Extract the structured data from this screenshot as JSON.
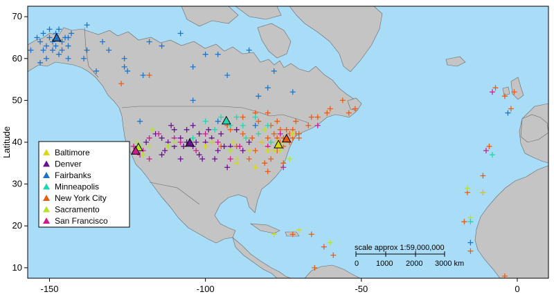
{
  "map": {
    "ylabel": "Latitude",
    "x_ticks": [
      -150,
      -100,
      -50,
      0
    ],
    "y_ticks": [
      10,
      20,
      30,
      40,
      50,
      60,
      70
    ],
    "xlim": [
      -157,
      10
    ],
    "ylim": [
      7.5,
      72.5
    ],
    "colors": {
      "ocean": "#a9dcf7",
      "land": "#c4c4c4",
      "border": "#666666",
      "frame": "#000000"
    },
    "scale_bar": {
      "title": "scale approx 1:59,000,000",
      "labels": [
        "0",
        "1000",
        "2000",
        "3000 km"
      ]
    }
  },
  "legend": [
    {
      "name": "Baltimore",
      "color": "#d9d90a"
    },
    {
      "name": "Denver",
      "color": "#6a0d8f"
    },
    {
      "name": "Fairbanks",
      "color": "#1e73c8"
    },
    {
      "name": "Minneapolis",
      "color": "#1fd6b0"
    },
    {
      "name": "New York City",
      "color": "#ec5a0f"
    },
    {
      "name": "Sacramento",
      "color": "#b6e22a"
    },
    {
      "name": "San Francisco",
      "color": "#d0188f"
    }
  ],
  "chart_data": {
    "type": "scatter",
    "xlabel": "",
    "ylabel": "Latitude",
    "xlim": [
      -157,
      10
    ],
    "ylim": [
      7.5,
      72.5
    ],
    "cities": [
      {
        "name": "Baltimore",
        "lon": -76.6,
        "lat": 39.3
      },
      {
        "name": "Denver",
        "lon": -105.0,
        "lat": 39.7
      },
      {
        "name": "Fairbanks",
        "lon": -147.7,
        "lat": 64.8
      },
      {
        "name": "Minneapolis",
        "lon": -93.3,
        "lat": 45.0
      },
      {
        "name": "New York City",
        "lon": -74.0,
        "lat": 40.7
      },
      {
        "name": "Sacramento",
        "lon": -121.5,
        "lat": 38.6
      },
      {
        "name": "San Francisco",
        "lon": -122.4,
        "lat": 37.8
      }
    ],
    "series": [
      {
        "name": "Fairbanks",
        "points": [
          [
            -152,
            66
          ],
          [
            -150,
            65
          ],
          [
            -149,
            64
          ],
          [
            -148,
            66
          ],
          [
            -146,
            64
          ],
          [
            -145,
            65
          ],
          [
            -147,
            67
          ],
          [
            -151,
            63
          ],
          [
            -144,
            63
          ],
          [
            -153,
            64
          ],
          [
            -149,
            62
          ],
          [
            -146,
            62
          ],
          [
            -143,
            66
          ],
          [
            -150,
            67
          ],
          [
            -144,
            65
          ],
          [
            -148,
            63
          ],
          [
            -154,
            65
          ],
          [
            -152,
            62
          ],
          [
            -147,
            61
          ],
          [
            -151,
            60
          ],
          [
            -156,
            62
          ],
          [
            -153,
            59
          ],
          [
            -138,
            68
          ],
          [
            -138,
            62
          ],
          [
            -131,
            62
          ],
          [
            -126,
            60
          ],
          [
            -133,
            64
          ],
          [
            -118,
            64
          ],
          [
            -114,
            63
          ],
          [
            -120,
            56
          ],
          [
            -125,
            57
          ],
          [
            -108,
            66
          ],
          [
            -104,
            58
          ],
          [
            -100,
            61
          ],
          [
            -96,
            61
          ],
          [
            -86,
            62
          ],
          [
            -78,
            57
          ],
          [
            -93,
            56
          ],
          [
            -83,
            51
          ],
          [
            -104,
            50
          ],
          [
            -80,
            53
          ],
          [
            -139,
            60
          ],
          [
            -135,
            57
          ],
          [
            -126,
            58
          ],
          [
            -144,
            60
          ],
          [
            -121,
            45
          ],
          [
            -84,
            44
          ],
          [
            -96,
            45
          ],
          [
            -72,
            52
          ],
          [
            -15,
            16
          ],
          [
            -3,
            47
          ]
        ]
      },
      {
        "name": "New York City",
        "points": [
          [
            -74,
            41
          ],
          [
            -73,
            42
          ],
          [
            -72,
            41
          ],
          [
            -75,
            41
          ],
          [
            -76,
            40
          ],
          [
            -71,
            42
          ],
          [
            -70,
            42
          ],
          [
            -73,
            40
          ],
          [
            -77,
            41
          ],
          [
            -74,
            43
          ],
          [
            -75,
            39
          ],
          [
            -72,
            43
          ],
          [
            -70,
            41
          ],
          [
            -78,
            42
          ],
          [
            -76,
            43
          ],
          [
            -80,
            41
          ],
          [
            -82,
            40
          ],
          [
            -85,
            41
          ],
          [
            -88,
            42
          ],
          [
            -90,
            39
          ],
          [
            -95,
            39
          ],
          [
            -98,
            40
          ],
          [
            -84,
            38
          ],
          [
            -86,
            36
          ],
          [
            -81,
            35
          ],
          [
            -77,
            38
          ],
          [
            -79,
            36
          ],
          [
            -83,
            45
          ],
          [
            -79,
            44
          ],
          [
            -71,
            45
          ],
          [
            -66,
            46
          ],
          [
            -64,
            46
          ],
          [
            -61,
            47
          ],
          [
            -54,
            47
          ],
          [
            -52,
            48
          ],
          [
            -56,
            50
          ],
          [
            -60,
            48
          ],
          [
            -67,
            44
          ],
          [
            -88,
            46
          ],
          [
            -93,
            44
          ],
          [
            -77,
            45
          ],
          [
            -75,
            35
          ],
          [
            -80,
            33
          ],
          [
            -72,
            18
          ],
          [
            -66,
            18
          ],
          [
            -62,
            15
          ],
          [
            -59,
            13
          ],
          [
            -65,
            10
          ],
          [
            -80,
            47
          ],
          [
            -84,
            47
          ],
          [
            -92,
            43
          ],
          [
            -118,
            56
          ],
          [
            -127,
            54
          ],
          [
            -4,
            51
          ],
          [
            -9,
            39
          ],
          [
            -2,
            48
          ],
          [
            -1,
            52
          ],
          [
            -7,
            53
          ],
          [
            -11,
            32
          ],
          [
            -16,
            28
          ],
          [
            -17,
            21
          ],
          [
            -15,
            14
          ],
          [
            -4,
            8
          ]
        ]
      },
      {
        "name": "Denver",
        "points": [
          [
            -105,
            40
          ],
          [
            -104,
            39
          ],
          [
            -106,
            40
          ],
          [
            -107,
            39
          ],
          [
            -103,
            40
          ],
          [
            -108,
            41
          ],
          [
            -110,
            39
          ],
          [
            -102,
            42
          ],
          [
            -100,
            40
          ],
          [
            -98,
            41
          ],
          [
            -96,
            38
          ],
          [
            -94,
            39
          ],
          [
            -112,
            40
          ],
          [
            -114,
            41
          ],
          [
            -116,
            42
          ],
          [
            -119,
            40
          ],
          [
            -111,
            44
          ],
          [
            -106,
            43
          ],
          [
            -99,
            43
          ],
          [
            -92,
            39
          ],
          [
            -88,
            38
          ],
          [
            -93,
            34
          ],
          [
            -97,
            36
          ],
          [
            -101,
            36
          ],
          [
            -108,
            36
          ],
          [
            -113,
            38
          ],
          [
            -104,
            44
          ],
          [
            -114,
            37
          ],
          [
            -90,
            43
          ],
          [
            -86,
            40
          ],
          [
            -95,
            42
          ],
          [
            -110,
            43
          ],
          [
            -102,
            37
          ]
        ]
      },
      {
        "name": "San Francisco",
        "points": [
          [
            -122,
            38
          ],
          [
            -121,
            37
          ],
          [
            -123,
            39
          ],
          [
            -120,
            38
          ],
          [
            -118,
            41
          ],
          [
            -115,
            42
          ],
          [
            -108,
            40
          ],
          [
            -100,
            42
          ],
          [
            -96,
            40
          ],
          [
            -92,
            36
          ],
          [
            -80,
            39
          ],
          [
            -76,
            42
          ],
          [
            -75,
            34
          ],
          [
            -118,
            36
          ],
          [
            -110,
            41
          ],
          [
            -103,
            38
          ],
          [
            -89,
            39
          ],
          [
            -64,
            44
          ],
          [
            -8,
            52
          ],
          [
            -10,
            38
          ],
          [
            -11,
            28
          ]
        ]
      },
      {
        "name": "Sacramento",
        "points": [
          [
            -121,
            39
          ],
          [
            -122,
            40
          ],
          [
            -120,
            37
          ],
          [
            -118,
            39
          ],
          [
            -117,
            43
          ],
          [
            -112,
            39
          ],
          [
            -110,
            40
          ],
          [
            -98,
            40
          ],
          [
            -92,
            38
          ],
          [
            -87,
            41
          ],
          [
            -81,
            43
          ],
          [
            -76,
            38
          ],
          [
            -73,
            36
          ],
          [
            -90,
            36
          ],
          [
            -78,
            18
          ],
          [
            -60,
            16
          ],
          [
            -15,
            22
          ],
          [
            -16,
            29
          ]
        ]
      },
      {
        "name": "Baltimore",
        "points": [
          [
            -77,
            40
          ],
          [
            -76,
            39
          ],
          [
            -78,
            38
          ],
          [
            -75,
            40
          ],
          [
            -80,
            38
          ],
          [
            -82,
            40
          ],
          [
            -86,
            38
          ],
          [
            -91,
            40
          ],
          [
            -90,
            35
          ],
          [
            -84,
            34
          ],
          [
            -72,
            42
          ],
          [
            -100,
            39
          ],
          [
            -78,
            18
          ],
          [
            -70,
            19
          ],
          [
            -11,
            28
          ]
        ]
      },
      {
        "name": "Minneapolis",
        "points": [
          [
            -93,
            45
          ],
          [
            -92,
            44
          ],
          [
            -90,
            46
          ],
          [
            -88,
            44
          ],
          [
            -95,
            46
          ],
          [
            -97,
            43
          ],
          [
            -87,
            41
          ],
          [
            -83,
            42
          ],
          [
            -80,
            44
          ],
          [
            -79,
            40
          ],
          [
            -104,
            41
          ],
          [
            -100,
            45
          ],
          [
            -84,
            46
          ],
          [
            -8,
            37
          ],
          [
            -15,
            21
          ]
        ]
      }
    ]
  }
}
